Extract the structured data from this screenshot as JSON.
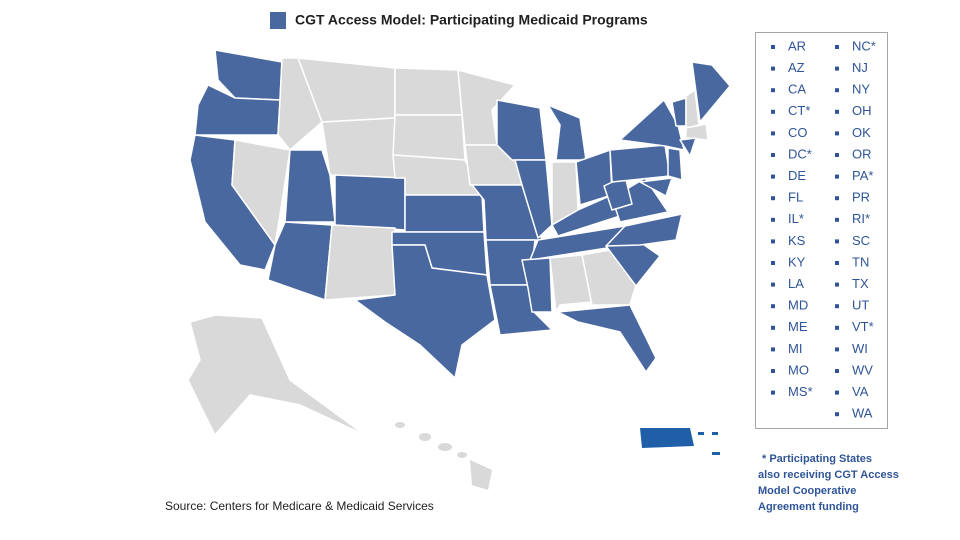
{
  "title": "CGT Access Model: Participating Medicaid Programs",
  "legend_items": [
    "AR",
    "AZ",
    "CA",
    "CT*",
    "CO",
    "DC*",
    "DE",
    "FL",
    "IL*",
    "KS",
    "KY",
    "LA",
    "MD",
    "ME",
    "MI",
    "MO",
    "MS*",
    "NC*",
    "NJ",
    "NY",
    "OH",
    "OK",
    "OR",
    "PA*",
    "PR",
    "RI*",
    "SC",
    "TN",
    "TX",
    "UT",
    "VT*",
    "WI",
    "WV",
    "VA",
    "WA"
  ],
  "footnote": [
    "* Participating States",
    "also receiving CGT Access",
    "Model Cooperative",
    "Agreement funding"
  ],
  "source": "Source: Centers for Medicare & Medicaid Services"
}
